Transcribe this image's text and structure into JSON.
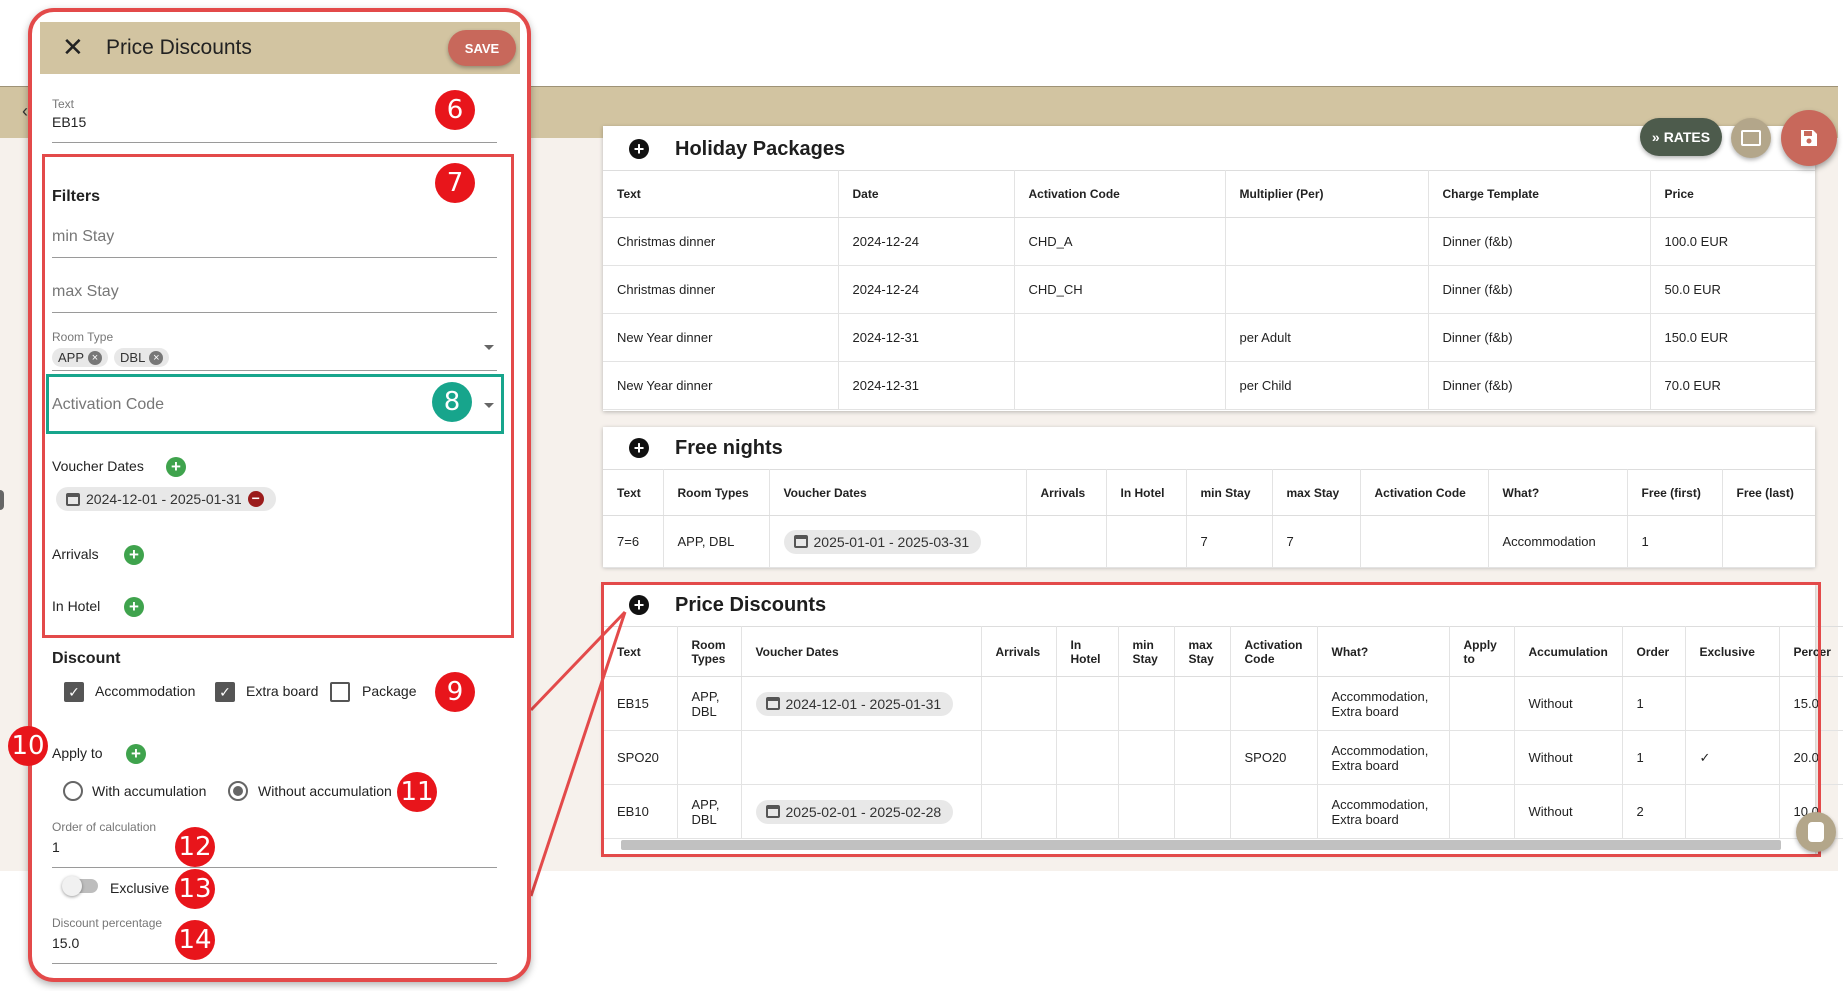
{
  "colors": {
    "accent_bar": "#d2c4a1",
    "save_button": "#c8685b",
    "highlight_red": "#e34a4a",
    "highlight_teal": "#17a58c",
    "badge_red": "#e8151b",
    "green_add": "#3fa34d"
  },
  "toolbar": {
    "rates_label": "RATES"
  },
  "holiday_packages": {
    "title": "Holiday Packages",
    "columns": [
      "Text",
      "Date",
      "Activation Code",
      "Multiplier (Per)",
      "Charge Template",
      "Price"
    ],
    "rows": [
      [
        "Christmas dinner",
        "2024-12-24",
        "CHD_A",
        "",
        "Dinner (f&b)",
        "100.0 EUR"
      ],
      [
        "Christmas dinner",
        "2024-12-24",
        "CHD_CH",
        "",
        "Dinner (f&b)",
        "50.0 EUR"
      ],
      [
        "New Year dinner",
        "2024-12-31",
        "",
        "per Adult",
        "Dinner (f&b)",
        "150.0 EUR"
      ],
      [
        "New Year dinner",
        "2024-12-31",
        "",
        "per Child",
        "Dinner (f&b)",
        "70.0 EUR"
      ]
    ]
  },
  "free_nights": {
    "title": "Free nights",
    "columns": [
      "Text",
      "Room Types",
      "Voucher Dates",
      "Arrivals",
      "In Hotel",
      "min Stay",
      "max Stay",
      "Activation Code",
      "What?",
      "Free (first)",
      "Free (last)"
    ],
    "rows": [
      [
        "7=6",
        "APP, DBL",
        "2025-01-01 - 2025-03-31",
        "",
        "",
        "7",
        "7",
        "",
        "Accommodation",
        "1",
        ""
      ]
    ]
  },
  "price_discounts_table": {
    "title": "Price Discounts",
    "columns": [
      "Text",
      "Room Types",
      "Voucher Dates",
      "Arrivals",
      "In Hotel",
      "min Stay",
      "max Stay",
      "Activation Code",
      "What?",
      "Apply to",
      "Accumulation",
      "Order",
      "Exclusive",
      "Percer"
    ],
    "rows": [
      [
        "EB15",
        "APP, DBL",
        "2024-12-01 - 2025-01-31",
        "",
        "",
        "",
        "",
        "",
        "Accommodation, Extra board",
        "",
        "Without",
        "1",
        "",
        "15.0"
      ],
      [
        "SPO20",
        "",
        "",
        "",
        "",
        "",
        "",
        "SPO20",
        "Accommodation, Extra board",
        "",
        "Without",
        "1",
        "✓",
        "20.0"
      ],
      [
        "EB10",
        "APP, DBL",
        "2025-02-01 - 2025-02-28",
        "",
        "",
        "",
        "",
        "",
        "Accommodation, Extra board",
        "",
        "Without",
        "2",
        "",
        "10.0"
      ]
    ]
  },
  "panel": {
    "title": "Price Discounts",
    "save_label": "SAVE",
    "text_field": {
      "label": "Text",
      "value": "EB15"
    },
    "filters": {
      "title": "Filters",
      "min_stay_placeholder": "min Stay",
      "max_stay_placeholder": "max Stay",
      "room_type_label": "Room Type",
      "room_type_chips": [
        "APP",
        "DBL"
      ],
      "activation_code_placeholder": "Activation Code",
      "voucher_dates_label": "Voucher Dates",
      "voucher_dates_chip": "2024-12-01 - 2025-01-31",
      "arrivals_label": "Arrivals",
      "in_hotel_label": "In Hotel"
    },
    "discount": {
      "title": "Discount",
      "checkboxes": [
        {
          "label": "Accommodation",
          "checked": true
        },
        {
          "label": "Extra board",
          "checked": true
        },
        {
          "label": "Package",
          "checked": false
        }
      ],
      "apply_to_label": "Apply to",
      "radio_with": "With accumulation",
      "radio_without": "Without accumulation",
      "radio_selected": "Without accumulation"
    },
    "order": {
      "label": "Order of calculation",
      "value": "1"
    },
    "exclusive": {
      "label": "Exclusive",
      "on": false
    },
    "percentage": {
      "label": "Discount percentage",
      "value": "15.0"
    }
  },
  "badges": [
    "6",
    "7",
    "8",
    "9",
    "10",
    "11",
    "12",
    "13",
    "14"
  ]
}
